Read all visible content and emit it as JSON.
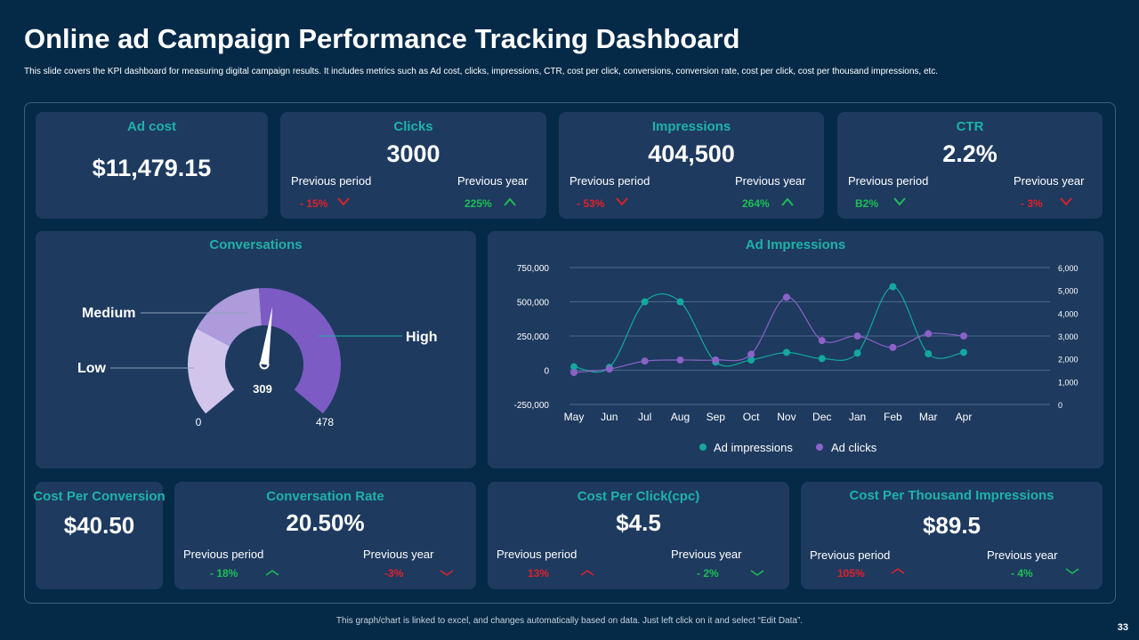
{
  "header": {
    "title": "Online ad Campaign Performance Tracking Dashboard",
    "subtitle": "This slide covers the KPI dashboard for measuring digital campaign results. It includes metrics such as Ad cost, clicks, impressions, CTR,  cost per click, conversions, conversion rate, cost per click, cost per thousand impressions, etc."
  },
  "ad_cost": {
    "title": "Ad cost",
    "value": "$11,479.15"
  },
  "clicks": {
    "title": "Clicks",
    "value": "3000",
    "prev_period_label": "Previous  period",
    "prev_period_value": "- 15%",
    "prev_year_label": "Previous  year",
    "prev_year_value": "225%"
  },
  "impressions": {
    "title": "Impressions",
    "value": "404,500",
    "prev_period_label": "Previous  period",
    "prev_period_value": "- 53%",
    "prev_year_label": "Previous  year",
    "prev_year_value": "264%"
  },
  "ctr": {
    "title": "CTR",
    "value": "2.2%",
    "prev_period_label": "Previous  period",
    "prev_period_value": "B2%",
    "prev_year_label": "Previous  year",
    "prev_year_value": "- 3%"
  },
  "conversations": {
    "title": "Conversations",
    "labels": {
      "low": "Low",
      "medium": "Medium",
      "high": "High"
    },
    "min_label": "0",
    "max_label": "478",
    "value_label": "309",
    "value": 309,
    "max": 478,
    "colors": {
      "low": "#d1c5ec",
      "medium": "#ad9bdc",
      "high": "#7c5cc4"
    }
  },
  "cost_per_conversion": {
    "title": "Cost Per Conversion",
    "value": "$40.50"
  },
  "conversation_rate": {
    "title": "Conversation Rate",
    "value": "20.50%",
    "prev_period_label": "Previous  period",
    "prev_period_value": "- 18%",
    "prev_year_label": "Previous  year",
    "prev_year_value": "-3%"
  },
  "cpc": {
    "title": "Cost Per Click(cpc)",
    "value": "$4.5",
    "prev_period_label": "Previous  period",
    "prev_period_value": "13%",
    "prev_year_label": "Previous  year",
    "prev_year_value": "- 2%"
  },
  "cpm": {
    "title": "Cost Per Thousand Impressions",
    "value": "$89.5",
    "prev_period_label": "Previous  period",
    "prev_period_value": "105%",
    "prev_year_label": "Previous  year",
    "prev_year_value": "- 4%"
  },
  "chart_data": {
    "type": "line",
    "title": "Ad Impressions",
    "categories": [
      "May",
      "Jun",
      "Jul",
      "Aug",
      "Sep",
      "Oct",
      "Nov",
      "Dec",
      "Jan",
      "Feb",
      "Mar",
      "Apr"
    ],
    "y_left": {
      "min": -250000,
      "max": 750000,
      "ticks": [
        -250000,
        0,
        250000,
        500000,
        750000
      ],
      "tick_labels": [
        "-250,000",
        "0",
        "250,000",
        "500,000",
        "750,000"
      ]
    },
    "y_right": {
      "min": 0,
      "max": 6000,
      "ticks": [
        0,
        1000,
        2000,
        3000,
        4000,
        5000,
        6000
      ],
      "tick_labels": [
        "0",
        "1,000",
        "2,000",
        "3,000",
        "4,000",
        "5,000",
        "6,000"
      ]
    },
    "series": [
      {
        "name": "Ad impressions",
        "axis": "left",
        "color": "#14a89c",
        "values": [
          25000,
          20000,
          500000,
          500000,
          60000,
          75000,
          130000,
          85000,
          125000,
          610000,
          120000,
          130000
        ]
      },
      {
        "name": "Ad clicks",
        "axis": "right",
        "color": "#8a62c8",
        "values": [
          1400,
          1550,
          1900,
          1950,
          1950,
          2200,
          4700,
          2800,
          3000,
          2500,
          3100,
          3000
        ]
      }
    ]
  }
}
